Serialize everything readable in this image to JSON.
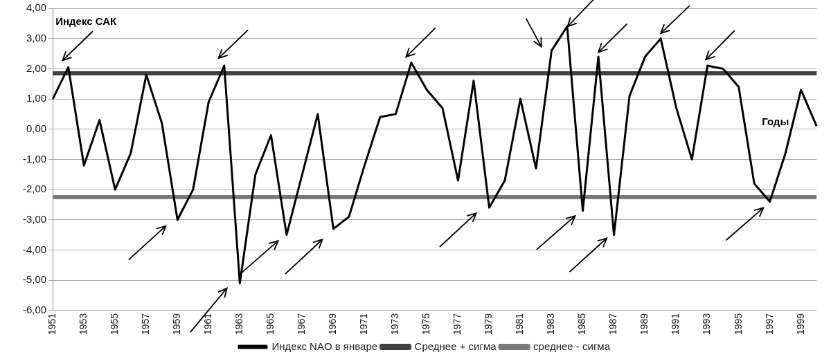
{
  "chart_data": {
    "type": "line",
    "xlabel": "Годы",
    "ylabel": "Индекс САК",
    "categories": [
      "1951",
      null,
      "1953",
      null,
      "1955",
      null,
      "1957",
      null,
      "1959",
      null,
      "1961",
      null,
      "1963",
      null,
      "1965",
      null,
      "1967",
      null,
      "1969",
      null,
      "1971",
      null,
      "1973",
      null,
      "1975",
      null,
      "1977",
      null,
      "1979",
      null,
      "1981",
      null,
      "1983",
      null,
      "1985",
      null,
      "1987",
      null,
      "1989",
      null,
      "1991",
      null,
      "1993",
      null,
      "1995",
      null,
      "1997",
      null,
      "1999",
      null
    ],
    "series": [
      {
        "name": "Индекс NAO в январе",
        "color": "#000000",
        "values": [
          1.0,
          2.05,
          -1.2,
          0.3,
          -2.0,
          -0.8,
          1.8,
          0.2,
          -3.0,
          -2.0,
          0.9,
          2.1,
          -5.1,
          -1.5,
          -0.2,
          -3.5,
          -1.5,
          0.5,
          -3.3,
          -2.9,
          -1.2,
          0.4,
          0.5,
          2.2,
          1.3,
          0.7,
          -1.7,
          1.6,
          -2.6,
          -1.7,
          1.0,
          -1.3,
          2.6,
          3.4,
          -2.7,
          2.4,
          -3.5,
          1.1,
          2.4,
          3.0,
          0.7,
          -1.0,
          2.1,
          2.0,
          1.4,
          -1.8,
          -2.4,
          -0.8,
          1.3,
          0.1
        ]
      },
      {
        "name": "Среднее + сигма",
        "color": "#404040",
        "values": [
          1.85,
          1.85,
          1.85,
          1.85,
          1.85,
          1.85,
          1.85,
          1.85,
          1.85,
          1.85,
          1.85,
          1.85,
          1.85,
          1.85,
          1.85,
          1.85,
          1.85,
          1.85,
          1.85,
          1.85,
          1.85,
          1.85,
          1.85,
          1.85,
          1.85,
          1.85,
          1.85,
          1.85,
          1.85,
          1.85,
          1.85,
          1.85,
          1.85,
          1.85,
          1.85,
          1.85,
          1.85,
          1.85,
          1.85,
          1.85,
          1.85,
          1.85,
          1.85,
          1.85,
          1.85,
          1.85,
          1.85,
          1.85,
          1.85,
          1.85
        ]
      },
      {
        "name": "среднее - сигма",
        "color": "#7a7a7a",
        "values": [
          -2.25,
          -2.25,
          -2.25,
          -2.25,
          -2.25,
          -2.25,
          -2.25,
          -2.25,
          -2.25,
          -2.25,
          -2.25,
          -2.25,
          -2.25,
          -2.25,
          -2.25,
          -2.25,
          -2.25,
          -2.25,
          -2.25,
          -2.25,
          -2.25,
          -2.25,
          -2.25,
          -2.25,
          -2.25,
          -2.25,
          -2.25,
          -2.25,
          -2.25,
          -2.25,
          -2.25,
          -2.25,
          -2.25,
          -2.25,
          -2.25,
          -2.25,
          -2.25,
          -2.25,
          -2.25,
          -2.25,
          -2.25,
          -2.25,
          -2.25,
          -2.25,
          -2.25,
          -2.25,
          -2.25,
          -2.25,
          -2.25,
          -2.25
        ]
      }
    ],
    "ylim": [
      -6,
      4
    ],
    "yticks": [
      {
        "value": 4,
        "label": "4,00"
      },
      {
        "value": 3,
        "label": "3,00"
      },
      {
        "value": 2,
        "label": "2,00"
      },
      {
        "value": 1,
        "label": "1,00"
      },
      {
        "value": 0,
        "label": "0,00"
      },
      {
        "value": -1,
        "label": "-1,00"
      },
      {
        "value": -2,
        "label": "-2,00"
      },
      {
        "value": -3,
        "label": "-3,00"
      },
      {
        "value": -4,
        "label": "-4,00"
      },
      {
        "value": -5,
        "label": "-5,00"
      },
      {
        "value": -6,
        "label": "-6,00"
      }
    ],
    "grid": "y",
    "legend": "bottom",
    "marker": "none"
  }
}
